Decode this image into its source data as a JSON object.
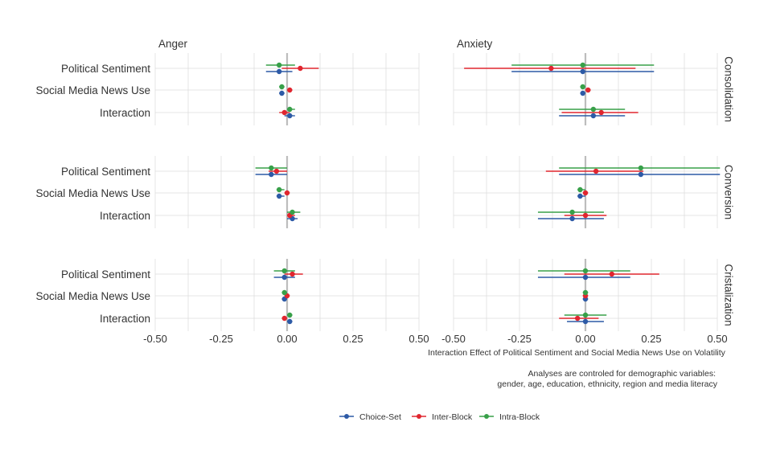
{
  "chart_data": {
    "type": "dot-errorbar (coefficient plot)",
    "columns": [
      "Anger",
      "Anxiety"
    ],
    "rows": [
      "Consolidation",
      "Conversion",
      "Cristalization"
    ],
    "terms": [
      "Political Sentiment",
      "Social Media News Use",
      "Interaction"
    ],
    "xlabel": "Interaction Effect of Political Sentiment and Social Media News Use on Volatility",
    "xlim": [
      -0.5,
      0.5
    ],
    "xticks": [
      -0.5,
      -0.25,
      0,
      0.25,
      0.5
    ],
    "xtick_labels": [
      "-0.50",
      "-0.25",
      "0.00",
      "0.25",
      "0.50"
    ],
    "reference_line": 0,
    "grid": true,
    "legend_position": "bottom",
    "series": [
      {
        "name": "Choice-Set",
        "color": "#2d5aa6"
      },
      {
        "name": "Inter-Block",
        "color": "#e0262f"
      },
      {
        "name": "Intra-Block",
        "color": "#38a049"
      }
    ],
    "panels": [
      {
        "column": "Anger",
        "row": "Consolidation",
        "estimates": {
          "Choice-Set": [
            [
              -0.03,
              -0.08,
              0.02
            ],
            [
              -0.02,
              -0.03,
              -0.01
            ],
            [
              0.01,
              -0.01,
              0.03
            ]
          ],
          "Inter-Block": [
            [
              0.05,
              -0.02,
              0.12
            ],
            [
              0.01,
              0.0,
              0.02
            ],
            [
              -0.01,
              -0.03,
              0.01
            ]
          ],
          "Intra-Block": [
            [
              -0.03,
              -0.08,
              0.03
            ],
            [
              -0.02,
              -0.03,
              -0.01
            ],
            [
              0.01,
              0.0,
              0.03
            ]
          ]
        }
      },
      {
        "column": "Anxiety",
        "row": "Consolidation",
        "estimates": {
          "Choice-Set": [
            [
              -0.01,
              -0.28,
              0.26
            ],
            [
              -0.01,
              -0.02,
              0.0
            ],
            [
              0.03,
              -0.1,
              0.15
            ]
          ],
          "Inter-Block": [
            [
              -0.13,
              -0.46,
              0.19
            ],
            [
              0.01,
              0.0,
              0.02
            ],
            [
              0.06,
              -0.09,
              0.2
            ]
          ],
          "Intra-Block": [
            [
              -0.01,
              -0.28,
              0.26
            ],
            [
              -0.01,
              -0.02,
              0.0
            ],
            [
              0.03,
              -0.1,
              0.15
            ]
          ]
        }
      },
      {
        "column": "Anger",
        "row": "Conversion",
        "estimates": {
          "Choice-Set": [
            [
              -0.06,
              -0.12,
              0.0
            ],
            [
              -0.03,
              -0.04,
              -0.01
            ],
            [
              0.02,
              0.0,
              0.04
            ]
          ],
          "Inter-Block": [
            [
              -0.04,
              -0.07,
              0.0
            ],
            [
              0.0,
              -0.01,
              0.01
            ],
            [
              0.01,
              0.0,
              0.03
            ]
          ],
          "Intra-Block": [
            [
              -0.06,
              -0.12,
              0.0
            ],
            [
              -0.03,
              -0.04,
              -0.01
            ],
            [
              0.02,
              0.0,
              0.05
            ]
          ]
        }
      },
      {
        "column": "Anxiety",
        "row": "Conversion",
        "estimates": {
          "Choice-Set": [
            [
              0.21,
              -0.1,
              0.51
            ],
            [
              -0.02,
              -0.03,
              0.0
            ],
            [
              -0.05,
              -0.18,
              0.07
            ]
          ],
          "Inter-Block": [
            [
              0.04,
              -0.15,
              0.22
            ],
            [
              0.0,
              -0.01,
              0.01
            ],
            [
              0.0,
              -0.08,
              0.08
            ]
          ],
          "Intra-Block": [
            [
              0.21,
              -0.1,
              0.51
            ],
            [
              -0.02,
              -0.03,
              0.0
            ],
            [
              -0.05,
              -0.18,
              0.07
            ]
          ]
        }
      },
      {
        "column": "Anger",
        "row": "Cristalization",
        "estimates": {
          "Choice-Set": [
            [
              -0.01,
              -0.05,
              0.03
            ],
            [
              -0.01,
              -0.02,
              0.0
            ],
            [
              0.01,
              0.0,
              0.02
            ]
          ],
          "Inter-Block": [
            [
              0.02,
              -0.01,
              0.06
            ],
            [
              0.0,
              -0.01,
              0.01
            ],
            [
              -0.01,
              -0.02,
              0.0
            ]
          ],
          "Intra-Block": [
            [
              -0.01,
              -0.05,
              0.03
            ],
            [
              -0.01,
              -0.02,
              0.0
            ],
            [
              0.01,
              0.0,
              0.02
            ]
          ]
        }
      },
      {
        "column": "Anxiety",
        "row": "Cristalization",
        "estimates": {
          "Choice-Set": [
            [
              0.0,
              -0.18,
              0.17
            ],
            [
              0.0,
              -0.01,
              0.01
            ],
            [
              0.0,
              -0.07,
              0.07
            ]
          ],
          "Inter-Block": [
            [
              0.1,
              -0.08,
              0.28
            ],
            [
              0.0,
              -0.01,
              0.01
            ],
            [
              -0.03,
              -0.1,
              0.05
            ]
          ],
          "Intra-Block": [
            [
              0.0,
              -0.18,
              0.17
            ],
            [
              0.0,
              -0.01,
              0.01
            ],
            [
              0.0,
              -0.08,
              0.08
            ]
          ]
        }
      }
    ]
  },
  "caption": {
    "line1": "Analyses are controled for demographic variables:",
    "line2": "gender, age, education, ethnicity, region and media literacy"
  }
}
